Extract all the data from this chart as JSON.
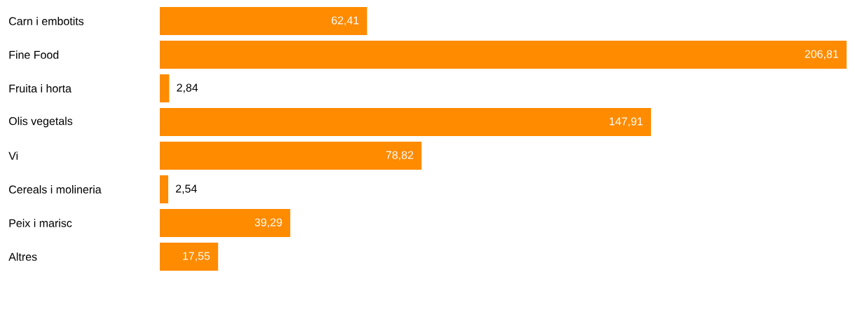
{
  "chart_data": {
    "type": "bar",
    "orientation": "horizontal",
    "color": "#ff8b00",
    "categories": [
      "Carn i embotits",
      "Fine Food",
      "Fruita i horta",
      "Olis vegetals",
      "Vi",
      "Cereals i molineria",
      "Peix i marisc",
      "Altres"
    ],
    "values": [
      62.41,
      206.81,
      2.84,
      147.91,
      78.82,
      2.54,
      39.29,
      17.55
    ],
    "value_labels": [
      "62,41",
      "206,81",
      "2,84",
      "147,91",
      "78,82",
      "2,54",
      "39,29",
      "17,55"
    ]
  }
}
